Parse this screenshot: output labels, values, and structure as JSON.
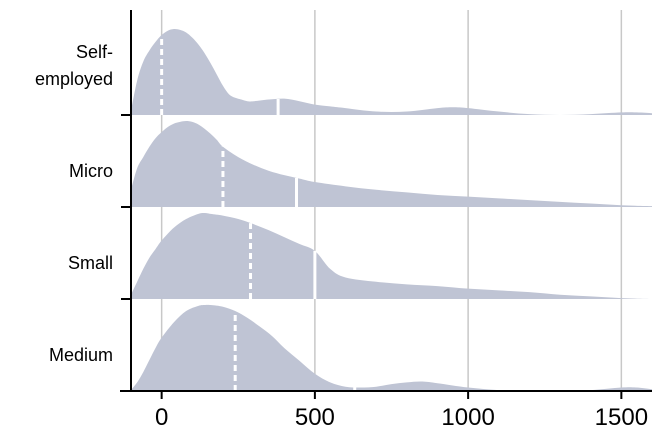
{
  "chart_data": {
    "type": "ridgeline",
    "title": "",
    "xlabel": "",
    "ylabel": "",
    "xlim": [
      -100,
      1600
    ],
    "x_ticks": [
      0,
      500,
      1000,
      1500
    ],
    "x_tick_labels": [
      "0",
      "500",
      "1000",
      "1500"
    ],
    "grid": "vertical",
    "colors": {
      "fill": "#bfc4d4",
      "axis": "#000000",
      "grid": "#c8c8c8",
      "marker": "#ffffff"
    },
    "categories": [
      "Self-employed",
      "Micro",
      "Small",
      "Medium"
    ],
    "category_label_lines": [
      [
        "Self-",
        "employed"
      ],
      [
        "Micro"
      ],
      [
        "Small"
      ],
      [
        "Medium"
      ]
    ],
    "series": [
      {
        "name": "Self-employed",
        "median": 0,
        "mean": 380,
        "x": [
          -100,
          -80,
          -60,
          -40,
          -20,
          0,
          20,
          40,
          60,
          80,
          100,
          120,
          140,
          160,
          180,
          200,
          220,
          240,
          260,
          280,
          300,
          350,
          400,
          450,
          500,
          550,
          600,
          700,
          800,
          900,
          950,
          1000,
          1100,
          1200,
          1300,
          1400,
          1500,
          1550,
          1600
        ],
        "density": [
          0.05,
          0.4,
          0.62,
          0.75,
          0.85,
          0.93,
          0.98,
          1.0,
          0.99,
          0.96,
          0.9,
          0.82,
          0.72,
          0.6,
          0.47,
          0.34,
          0.24,
          0.2,
          0.18,
          0.16,
          0.16,
          0.18,
          0.19,
          0.16,
          0.12,
          0.1,
          0.08,
          0.04,
          0.04,
          0.08,
          0.09,
          0.08,
          0.04,
          0.01,
          0.0,
          0.01,
          0.03,
          0.03,
          0.02
        ]
      },
      {
        "name": "Micro",
        "median": 200,
        "mean": 440,
        "x": [
          -100,
          -80,
          -60,
          -40,
          -20,
          0,
          20,
          40,
          60,
          80,
          100,
          120,
          140,
          160,
          180,
          200,
          250,
          300,
          350,
          400,
          450,
          500,
          600,
          700,
          800,
          900,
          1000,
          1100,
          1200,
          1300,
          1400,
          1500,
          1600
        ],
        "density": [
          0.2,
          0.45,
          0.58,
          0.7,
          0.8,
          0.87,
          0.93,
          0.97,
          0.99,
          1.0,
          0.99,
          0.96,
          0.91,
          0.85,
          0.78,
          0.7,
          0.58,
          0.49,
          0.42,
          0.37,
          0.33,
          0.29,
          0.24,
          0.2,
          0.17,
          0.14,
          0.12,
          0.1,
          0.08,
          0.06,
          0.04,
          0.02,
          0.01
        ]
      },
      {
        "name": "Small",
        "median": 290,
        "mean": 500,
        "x": [
          -100,
          -80,
          -60,
          -40,
          -20,
          0,
          40,
          80,
          120,
          140,
          160,
          200,
          250,
          300,
          350,
          400,
          450,
          500,
          550,
          600,
          700,
          800,
          900,
          1000,
          1100,
          1200,
          1300,
          1400,
          1500,
          1600
        ],
        "density": [
          0.05,
          0.2,
          0.35,
          0.48,
          0.58,
          0.68,
          0.83,
          0.93,
          0.99,
          1.0,
          0.99,
          0.97,
          0.93,
          0.87,
          0.8,
          0.72,
          0.64,
          0.56,
          0.35,
          0.25,
          0.2,
          0.17,
          0.15,
          0.12,
          0.1,
          0.08,
          0.05,
          0.03,
          0.01,
          0.0
        ]
      },
      {
        "name": "Medium",
        "median": 240,
        "mean": 630,
        "x": [
          -100,
          -80,
          -60,
          -40,
          -20,
          0,
          40,
          80,
          120,
          140,
          160,
          200,
          240,
          280,
          320,
          360,
          400,
          450,
          500,
          550,
          600,
          650,
          700,
          750,
          800,
          850,
          900,
          1000,
          1100,
          1200,
          1300,
          1400,
          1500,
          1550,
          1600
        ],
        "density": [
          0.01,
          0.1,
          0.22,
          0.36,
          0.5,
          0.62,
          0.8,
          0.93,
          0.99,
          1.0,
          1.0,
          0.98,
          0.93,
          0.85,
          0.75,
          0.64,
          0.5,
          0.35,
          0.2,
          0.1,
          0.05,
          0.04,
          0.05,
          0.08,
          0.1,
          0.11,
          0.09,
          0.04,
          0.01,
          0.0,
          0.0,
          0.01,
          0.04,
          0.04,
          0.02
        ]
      }
    ]
  }
}
